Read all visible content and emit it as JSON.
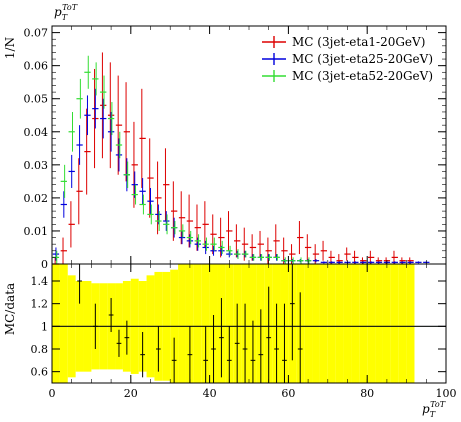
{
  "chart_data": {
    "type": "scatter",
    "panels": [
      {
        "name": "main",
        "ylabel": "1/N",
        "ylim": [
          0,
          0.072
        ],
        "yticks": [
          0,
          0.01,
          0.02,
          0.03,
          0.04,
          0.05,
          0.06,
          0.07
        ],
        "ytick_labels": [
          "0",
          "0.01",
          "0.02",
          "0.03",
          "0.04",
          "0.05",
          "0.06",
          "0.07"
        ],
        "legend_position": "top-right"
      },
      {
        "name": "ratio",
        "ylabel": "MC/data",
        "ylim": [
          0.5,
          1.55
        ],
        "yticks": [
          0.6,
          0.8,
          1.0,
          1.2,
          1.4
        ],
        "ytick_labels": [
          "0.6",
          "0.8",
          "1",
          "1.2",
          "1.4"
        ]
      }
    ],
    "title_label": {
      "p": "p",
      "sub": "T",
      "sup": "ToT"
    },
    "xlabel": {
      "p": "p",
      "sub": "T",
      "sup": "ToT"
    },
    "xlim": [
      0,
      100
    ],
    "xticks": [
      0,
      20,
      40,
      60,
      80,
      100
    ],
    "xtick_labels": [
      "0",
      "20",
      "40",
      "60",
      "80",
      "100"
    ],
    "series": [
      {
        "name": "MC (3jet-eta1-20GeV)",
        "color": "#dd0000",
        "x": [
          1,
          3,
          5,
          7,
          9,
          11,
          13,
          15,
          17,
          19,
          21,
          23,
          25,
          27,
          29,
          31,
          33,
          35,
          37,
          39,
          41,
          43,
          45,
          47,
          49,
          51,
          53,
          55,
          57,
          59,
          61,
          63,
          65,
          67,
          69,
          71,
          73,
          75,
          77,
          79,
          81,
          83,
          85,
          87,
          89,
          91
        ],
        "y": [
          0.0,
          0.004,
          0.012,
          0.022,
          0.034,
          0.044,
          0.048,
          0.045,
          0.042,
          0.04,
          0.03,
          0.038,
          0.026,
          0.02,
          0.024,
          0.016,
          0.014,
          0.013,
          0.011,
          0.012,
          0.009,
          0.008,
          0.01,
          0.007,
          0.006,
          0.005,
          0.006,
          0.004,
          0.007,
          0.004,
          0.003,
          0.008,
          0.005,
          0.003,
          0.004,
          0.002,
          0.001,
          0.003,
          0.002,
          0.001,
          0.002,
          0.001,
          0.001,
          0.002,
          0.001,
          0.001
        ],
        "err": [
          0.002,
          0.004,
          0.007,
          0.01,
          0.013,
          0.015,
          0.016,
          0.016,
          0.015,
          0.015,
          0.013,
          0.015,
          0.012,
          0.011,
          0.011,
          0.009,
          0.008,
          0.008,
          0.007,
          0.007,
          0.006,
          0.006,
          0.006,
          0.005,
          0.005,
          0.004,
          0.004,
          0.004,
          0.005,
          0.004,
          0.003,
          0.005,
          0.004,
          0.003,
          0.003,
          0.002,
          0.002,
          0.002,
          0.002,
          0.001,
          0.002,
          0.001,
          0.001,
          0.002,
          0.001,
          0.001
        ]
      },
      {
        "name": "MC (3jet-eta25-20GeV)",
        "color": "#0000dd",
        "x": [
          1,
          3,
          5,
          7,
          9,
          11,
          13,
          15,
          17,
          19,
          21,
          23,
          25,
          27,
          29,
          31,
          33,
          35,
          37,
          39,
          41,
          43,
          45,
          47,
          49,
          51,
          53,
          55,
          57,
          59,
          61,
          63,
          65,
          67,
          69,
          71,
          73,
          75,
          77,
          79,
          81,
          83,
          85,
          87,
          89,
          91,
          93,
          95
        ],
        "y": [
          0.003,
          0.018,
          0.028,
          0.036,
          0.045,
          0.047,
          0.044,
          0.04,
          0.033,
          0.027,
          0.024,
          0.022,
          0.019,
          0.015,
          0.013,
          0.011,
          0.008,
          0.007,
          0.006,
          0.005,
          0.004,
          0.004,
          0.003,
          0.003,
          0.003,
          0.002,
          0.002,
          0.002,
          0.002,
          0.001,
          0.001,
          0.001,
          0.001,
          0.001,
          0.0005,
          0.0005,
          0.0005,
          0.0005,
          0.0005,
          0.0005,
          0.0005,
          0.0005,
          0.0005,
          0.0005,
          0.0005,
          0.0005,
          0.0005,
          0.0005
        ],
        "err": [
          0.002,
          0.004,
          0.005,
          0.006,
          0.006,
          0.006,
          0.006,
          0.006,
          0.005,
          0.005,
          0.004,
          0.004,
          0.004,
          0.003,
          0.003,
          0.003,
          0.002,
          0.002,
          0.002,
          0.002,
          0.0015,
          0.0015,
          0.001,
          0.001,
          0.001,
          0.001,
          0.001,
          0.001,
          0.001,
          0.0005,
          0.0005,
          0.0005,
          0.0005,
          0.0005,
          0.0003,
          0.0003,
          0.0003,
          0.0003,
          0.0003,
          0.0003,
          0.0003,
          0.0003,
          0.0003,
          0.0003,
          0.0003,
          0.0003,
          0.0003,
          0.0003
        ]
      },
      {
        "name": "MC (3jet-eta52-20GeV)",
        "color": "#33dd33",
        "x": [
          1,
          3,
          5,
          7,
          9,
          11,
          13,
          15,
          17,
          19,
          21,
          23,
          25,
          27,
          29,
          31,
          33,
          35,
          37,
          39,
          41,
          43,
          45,
          47,
          49,
          51,
          53,
          55,
          57,
          59,
          61,
          63,
          65
        ],
        "y": [
          0.002,
          0.025,
          0.04,
          0.05,
          0.058,
          0.056,
          0.052,
          0.044,
          0.036,
          0.027,
          0.021,
          0.018,
          0.015,
          0.013,
          0.012,
          0.011,
          0.01,
          0.008,
          0.007,
          0.006,
          0.006,
          0.005,
          0.004,
          0.003,
          0.003,
          0.002,
          0.002,
          0.002,
          0.002,
          0.001,
          0.001,
          0.001,
          0.001
        ],
        "err": [
          0.002,
          0.005,
          0.006,
          0.006,
          0.005,
          0.005,
          0.005,
          0.005,
          0.004,
          0.004,
          0.003,
          0.003,
          0.003,
          0.003,
          0.003,
          0.002,
          0.002,
          0.002,
          0.002,
          0.002,
          0.002,
          0.002,
          0.0015,
          0.0015,
          0.001,
          0.001,
          0.001,
          0.001,
          0.001,
          0.001,
          0.001,
          0.001,
          0.001
        ]
      }
    ],
    "ratio_band": {
      "color": "#ffff00",
      "x": [
        1,
        3,
        5,
        7,
        9,
        11,
        13,
        15,
        17,
        19,
        21,
        23,
        25,
        27,
        29,
        31,
        33,
        35,
        37,
        39,
        41,
        43,
        45,
        47,
        49,
        51,
        53,
        55,
        57,
        59,
        61,
        63,
        65,
        67,
        69,
        71,
        73,
        75,
        77,
        79,
        81,
        83,
        85,
        87,
        89,
        91
      ],
      "half_width": [
        0.6,
        0.55,
        0.45,
        0.4,
        0.4,
        0.38,
        0.38,
        0.38,
        0.38,
        0.4,
        0.42,
        0.4,
        0.45,
        0.48,
        0.48,
        0.5,
        0.55,
        0.55,
        0.6,
        0.6,
        0.65,
        0.65,
        0.6,
        0.7,
        0.7,
        0.7,
        0.75,
        0.8,
        0.75,
        0.8,
        0.8,
        0.7,
        0.8,
        0.9,
        0.9,
        0.9,
        0.9,
        0.9,
        0.9,
        0.9,
        0.9,
        0.9,
        0.9,
        0.9,
        0.9,
        0.9
      ]
    },
    "ratio_points": {
      "color": "#000000",
      "x": [
        7,
        11,
        15,
        17,
        19,
        23,
        27,
        31,
        35,
        39,
        41,
        43,
        45,
        47,
        49,
        51,
        53,
        55,
        57,
        59,
        61,
        63
      ],
      "y": [
        1.4,
        1.0,
        1.1,
        0.85,
        0.9,
        0.75,
        0.8,
        0.7,
        0.75,
        0.7,
        0.8,
        0.9,
        0.7,
        0.85,
        0.8,
        0.7,
        0.75,
        0.9,
        0.8,
        0.7,
        1.2,
        0.8
      ],
      "err": [
        0.2,
        0.2,
        0.15,
        0.12,
        0.15,
        0.2,
        0.2,
        0.2,
        0.25,
        0.3,
        0.3,
        0.35,
        0.3,
        0.35,
        0.4,
        0.35,
        0.4,
        0.45,
        0.4,
        0.5,
        0.5,
        0.5
      ]
    }
  }
}
